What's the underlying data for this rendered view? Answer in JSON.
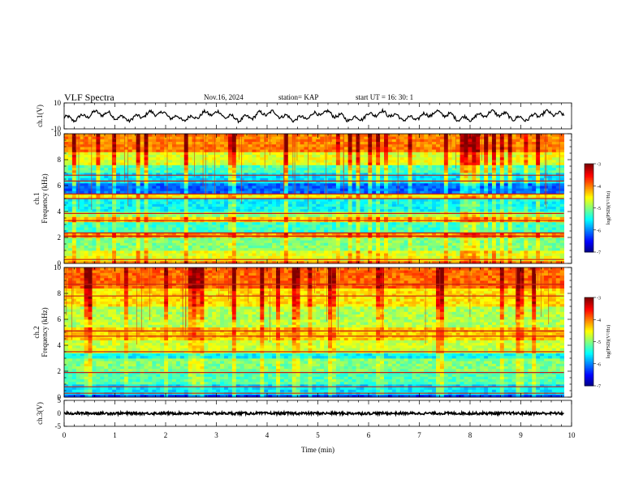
{
  "chart_data": {
    "type": "heatmap",
    "header": {
      "title": "VLF Spectra",
      "date": "Nov.16, 2024",
      "station": "station= KAP",
      "start_ut": "start  UT  =   16: 30: 1"
    },
    "x_axis": {
      "label": "Time  (min)",
      "range": [
        0,
        10
      ],
      "ticks": [
        0,
        1,
        2,
        3,
        4,
        5,
        6,
        7,
        8,
        9,
        10
      ],
      "data_end_min": 9.85
    },
    "panels": [
      {
        "name": "ch1-waveform",
        "kind": "line",
        "ylabel": "ch.1(V)",
        "ylim": [
          -10,
          10
        ],
        "yticks": [
          10,
          -10
        ],
        "mean": 0,
        "amplitude": 5
      },
      {
        "name": "ch1-spectrogram",
        "kind": "heatmap",
        "ylabel_1": "ch.1",
        "ylabel_2": "Frequency (kHz)",
        "ylim": [
          0,
          10
        ],
        "yticks": [
          0,
          2,
          4,
          6,
          8,
          10
        ],
        "colorbar": {
          "label": "log(PSD)(V²/Hz)",
          "range": [
            -7,
            -3
          ],
          "ticks": [
            -3,
            -4,
            -5,
            -6,
            -7
          ]
        },
        "bands": [
          {
            "from": 0.0,
            "to": 0.3,
            "level": -4.0
          },
          {
            "from": 0.3,
            "to": 1.0,
            "level": -4.6
          },
          {
            "from": 1.0,
            "to": 2.0,
            "level": -5.0
          },
          {
            "from": 2.0,
            "to": 2.4,
            "level": -4.1
          },
          {
            "from": 2.4,
            "to": 3.2,
            "level": -5.3
          },
          {
            "from": 3.2,
            "to": 3.6,
            "level": -4.3
          },
          {
            "from": 3.6,
            "to": 4.0,
            "level": -4.9
          },
          {
            "from": 4.0,
            "to": 5.0,
            "level": -5.5
          },
          {
            "from": 5.0,
            "to": 5.5,
            "level": -4.5
          },
          {
            "from": 5.5,
            "to": 6.3,
            "level": -6.1
          },
          {
            "from": 6.3,
            "to": 6.9,
            "level": -5.6
          },
          {
            "from": 6.9,
            "to": 7.6,
            "level": -5.2
          },
          {
            "from": 7.6,
            "to": 8.6,
            "level": -4.6
          },
          {
            "from": 8.6,
            "to": 10.0,
            "level": -4.0
          }
        ],
        "lines": [
          0.3,
          2.1,
          2.35,
          3.3,
          3.85,
          5.0,
          5.35,
          6.35,
          6.8
        ]
      },
      {
        "name": "ch2-spectrogram",
        "kind": "heatmap",
        "ylabel_1": "ch.2",
        "ylabel_2": "Frequency (kHz)",
        "ylim": [
          0,
          10
        ],
        "yticks": [
          0,
          2,
          4,
          6,
          8,
          10
        ],
        "colorbar": {
          "label": "log(PSD)(V²/Hz)",
          "range": [
            -7,
            -3
          ],
          "ticks": [
            -3,
            -4,
            -5,
            -6,
            -7
          ]
        },
        "bands": [
          {
            "from": 0.0,
            "to": 0.3,
            "level": -6.3
          },
          {
            "from": 0.3,
            "to": 1.0,
            "level": -5.6
          },
          {
            "from": 1.0,
            "to": 2.0,
            "level": -5.2
          },
          {
            "from": 2.0,
            "to": 3.0,
            "level": -5.0
          },
          {
            "from": 3.0,
            "to": 3.5,
            "level": -5.5
          },
          {
            "from": 3.5,
            "to": 4.5,
            "level": -4.7
          },
          {
            "from": 4.5,
            "to": 5.5,
            "level": -4.3
          },
          {
            "from": 5.5,
            "to": 7.0,
            "level": -4.8
          },
          {
            "from": 7.0,
            "to": 8.5,
            "level": -4.4
          },
          {
            "from": 8.5,
            "to": 10.0,
            "level": -3.9
          }
        ],
        "lines": [
          0.3,
          0.8,
          1.9,
          3.5,
          4.7,
          5.1,
          7.8,
          8.7
        ]
      },
      {
        "name": "ch3-waveform",
        "kind": "line",
        "ylabel": "ch.3(V)",
        "ylim": [
          -5,
          5
        ],
        "yticks": [
          5,
          0,
          -5
        ],
        "mean": 0,
        "amplitude": 0.5
      }
    ]
  }
}
